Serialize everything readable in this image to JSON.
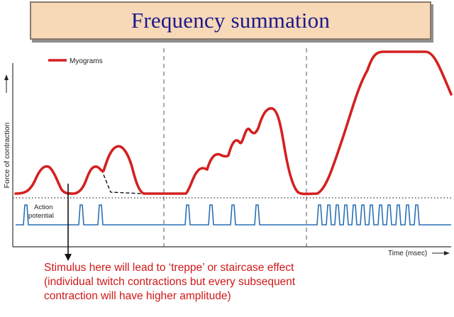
{
  "title": "Frequency summation",
  "legend": {
    "label": "Myograms",
    "color": "#d42020"
  },
  "axes": {
    "y_label": "Force of contraction",
    "x_label": "Time (msec)"
  },
  "action_potential_label": [
    "Action",
    "potential"
  ],
  "annotation": {
    "lines": [
      "Stimulus here will lead to ‘treppe’ or staircase effect",
      "(individual twitch contractions but every subsequent",
      "contraction will have higher amplitude)"
    ],
    "color": "#d01818"
  },
  "colors": {
    "myogram": "#d42020",
    "action_potential": "#2a6fb5",
    "axis": "#333333",
    "title_bg": "#f7d8b7",
    "title_text": "#1a1a8a"
  }
}
